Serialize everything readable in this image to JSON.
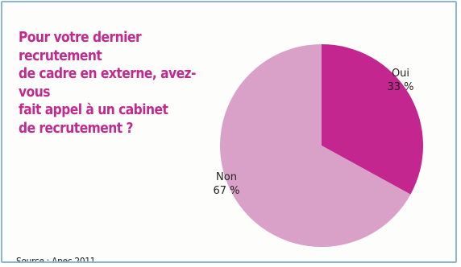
{
  "chart_data": {
    "type": "pie",
    "title": "Pour votre dernier recrutement de cadre en externe, avez-vous fait appel à un cabinet de recrutement ?",
    "title_lines": [
      "Pour votre dernier recrutement",
      "de cadre en externe, avez-vous",
      "fait appel à un cabinet",
      "de recrutement ?"
    ],
    "slices": [
      {
        "label": "Oui",
        "value": 33,
        "value_label": "33 %",
        "color": "#c42690"
      },
      {
        "label": "Non",
        "value": 67,
        "value_label": "67 %",
        "color": "#d9a0c8"
      }
    ],
    "source": "Source : Apec 2011"
  },
  "colors": {
    "title": "#c12a8e",
    "frame_border": "#8fb6cf"
  }
}
